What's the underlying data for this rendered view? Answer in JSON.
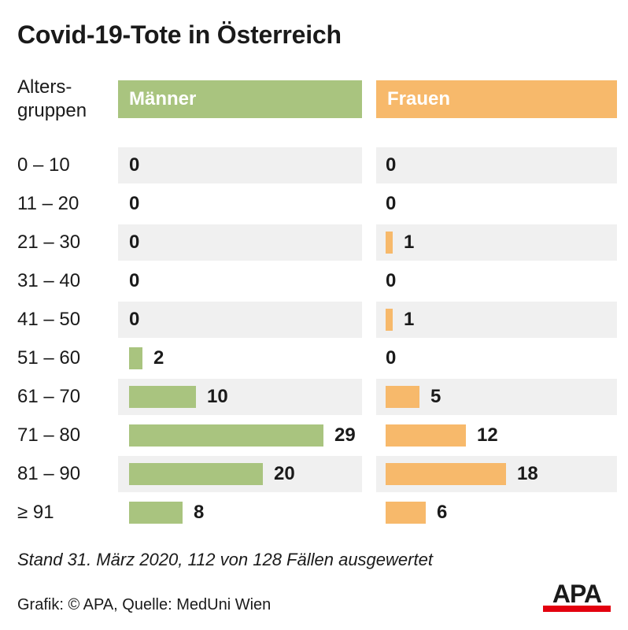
{
  "chart_data": {
    "type": "bar",
    "title": "Covid-19-Tote in Österreich",
    "category_axis_label": "Alters-\ngruppen",
    "categories": [
      "0 – 10",
      "11 – 20",
      "21 – 30",
      "31 – 40",
      "41 – 50",
      "51 – 60",
      "61 – 70",
      "71 – 80",
      "81 – 90",
      "≥ 91"
    ],
    "series": [
      {
        "name": "Männer",
        "color": "#a9c47f",
        "values": [
          0,
          0,
          0,
          0,
          0,
          2,
          10,
          29,
          20,
          8
        ]
      },
      {
        "name": "Frauen",
        "color": "#f7b96b",
        "values": [
          0,
          0,
          1,
          0,
          1,
          0,
          5,
          12,
          18,
          6
        ]
      }
    ],
    "footnote": "Stand 31. März 2020, 112 von 128 Fällen ausgewertet",
    "credit": "Grafik: © APA, Quelle: MedUni Wien",
    "logo_text": "APA",
    "colors": {
      "row_background": "#f0f0f0",
      "logo_red": "#e3000f"
    }
  }
}
